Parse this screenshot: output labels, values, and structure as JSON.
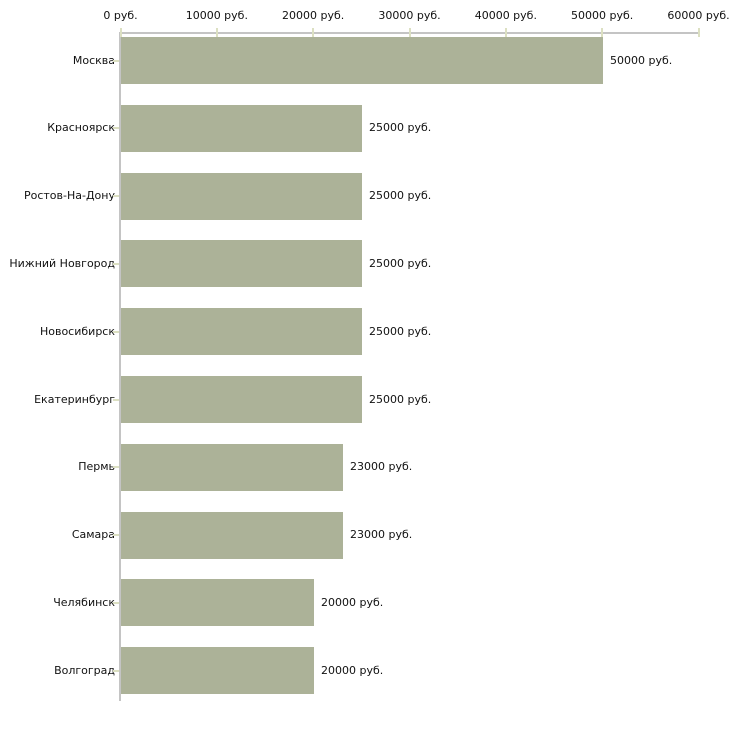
{
  "chart_data": {
    "type": "bar",
    "orientation": "horizontal",
    "title": "",
    "xlabel": "",
    "ylabel": "",
    "unit": "руб.",
    "categories": [
      "Москва",
      "Красноярск",
      "Ростов-На-Дону",
      "Нижний Новгород",
      "Новосибирск",
      "Екатеринбург",
      "Пермь",
      "Самара",
      "Челябинск",
      "Волгоград"
    ],
    "values": [
      50000,
      25000,
      25000,
      25000,
      25000,
      25000,
      23000,
      23000,
      20000,
      20000
    ],
    "value_labels": [
      "50000 руб.",
      "25000 руб.",
      "25000 руб.",
      "25000 руб.",
      "25000 руб.",
      "25000 руб.",
      "23000 руб.",
      "23000 руб.",
      "20000 руб.",
      "20000 руб."
    ],
    "x_tick_values": [
      0,
      10000,
      20000,
      30000,
      40000,
      50000,
      60000
    ],
    "x_tick_labels": [
      "0 руб.",
      "10000 руб.",
      "20000 руб.",
      "30000 руб.",
      "40000 руб.",
      "50000 руб.",
      "60000 руб."
    ],
    "xlim": [
      0,
      60000
    ],
    "grid": false,
    "legend": "none",
    "colors": {
      "bar": "#acb298",
      "axis_line": "#c4c4c4",
      "tick_mark": "#dce0c2",
      "text": "#111111",
      "background": "#ffffff"
    }
  }
}
